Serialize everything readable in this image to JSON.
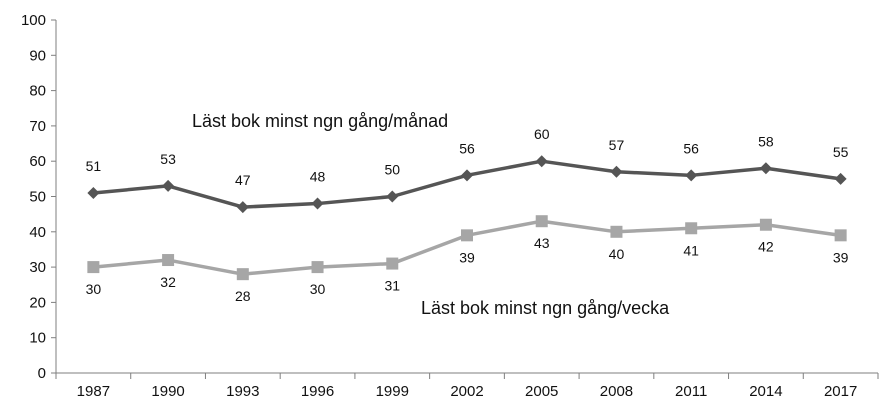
{
  "chart_data": {
    "type": "line",
    "categories": [
      "1987",
      "1990",
      "1993",
      "1996",
      "1999",
      "2002",
      "2005",
      "2008",
      "2011",
      "2014",
      "2017"
    ],
    "ylim": [
      0,
      100
    ],
    "yticks": [
      "0",
      "10",
      "20",
      "30",
      "40",
      "50",
      "60",
      "70",
      "80",
      "90",
      "100"
    ],
    "grid": false,
    "series": [
      {
        "name": "Läst bok minst ngn gång/månad",
        "values": [
          51,
          53,
          47,
          48,
          50,
          56,
          60,
          57,
          56,
          58,
          55
        ],
        "color": "#555555",
        "marker": "diamond",
        "label_position": "above"
      },
      {
        "name": "Läst bok minst ngn gång/vecka",
        "values": [
          30,
          32,
          28,
          30,
          31,
          39,
          43,
          40,
          41,
          42,
          39
        ],
        "color": "#a6a6a6",
        "marker": "square",
        "label_position": "below"
      }
    ]
  }
}
